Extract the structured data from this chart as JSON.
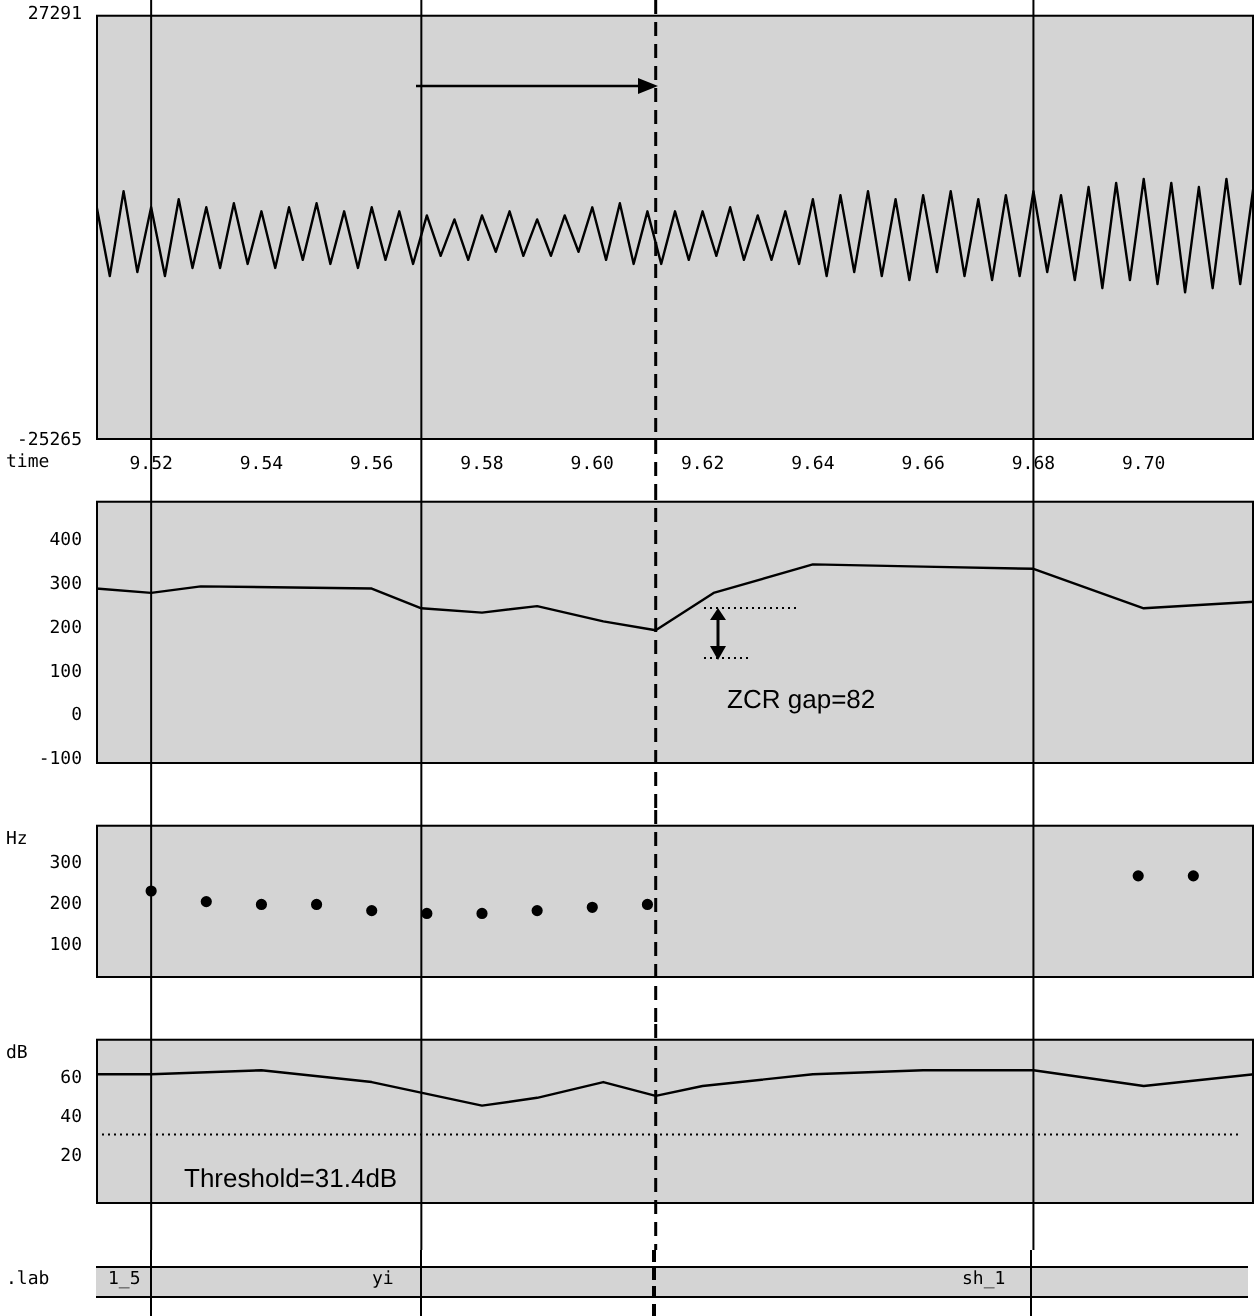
{
  "chart_data": [
    {
      "type": "line",
      "xlabel": "time",
      "xlim": [
        9.51,
        9.72
      ],
      "ylim": [
        -25265,
        27291
      ],
      "yticks": [
        27291,
        -25265
      ],
      "xticks": [
        9.52,
        9.54,
        9.56,
        9.58,
        {
          "value": 9.6,
          "label": "9.60"
        },
        9.62,
        9.64,
        9.66,
        9.68,
        {
          "value": 9.7,
          "label": "9.70"
        }
      ],
      "grid": false,
      "legend": false,
      "marker": "none",
      "x": [
        9.51,
        9.5125,
        9.515,
        9.5175,
        9.52,
        9.5225,
        9.525,
        9.5275,
        9.53,
        9.5325,
        9.535,
        9.5375,
        9.54,
        9.5425,
        9.545,
        9.5475,
        9.55,
        9.5525,
        9.555,
        9.5575,
        9.56,
        9.5625,
        9.565,
        9.5675,
        9.57,
        9.5725,
        9.575,
        9.5775,
        9.58,
        9.5825,
        9.585,
        9.5875,
        9.59,
        9.5925,
        9.595,
        9.5975,
        9.6,
        9.6025,
        9.605,
        9.6075,
        9.61,
        9.6125,
        9.615,
        9.6175,
        9.62,
        9.6225,
        9.625,
        9.6275,
        9.63,
        9.6325,
        9.635,
        9.6375,
        9.64,
        9.6425,
        9.645,
        9.6475,
        9.65,
        9.6525,
        9.655,
        9.6575,
        9.66,
        9.6625,
        9.665,
        9.6675,
        9.67,
        9.6725,
        9.675,
        9.6775,
        9.68,
        9.6825,
        9.685,
        9.6875,
        9.69,
        9.6925,
        9.695,
        9.6975,
        9.7,
        9.7025,
        9.705,
        9.7075,
        9.71,
        9.7125,
        9.715,
        9.7175,
        9.72
      ],
      "series": [
        {
          "color": "#000000",
          "values": [
            4000,
            -5000,
            5500,
            -4500,
            3500,
            -5000,
            4500,
            -4000,
            3500,
            -4000,
            4000,
            -3500,
            3000,
            -4000,
            3500,
            -3000,
            4000,
            -3500,
            3000,
            -4000,
            3500,
            -3000,
            3000,
            -3500,
            2500,
            -2500,
            2000,
            -3000,
            2500,
            -2000,
            3000,
            -2500,
            2000,
            -2500,
            2500,
            -2000,
            3500,
            -3000,
            4000,
            -3500,
            3000,
            -3500,
            3000,
            -3000,
            3000,
            -2500,
            3500,
            -3000,
            2500,
            -3000,
            3000,
            -3500,
            4500,
            -5000,
            5000,
            -4500,
            5500,
            -5000,
            4500,
            -5500,
            5000,
            -4500,
            5500,
            -5000,
            4500,
            -5500,
            5000,
            -5000,
            5500,
            -4500,
            5000,
            -5500,
            6000,
            -6500,
            6500,
            -5500,
            7000,
            -6000,
            6500,
            -7000,
            6000,
            -6500,
            7000,
            -6000,
            6500
          ]
        }
      ],
      "ref_lines": [
        {
          "axis": "x",
          "value": 9.52
        },
        {
          "axis": "x",
          "value": 9.569
        },
        {
          "axis": "x",
          "value": 9.6115,
          "line_style": "dashed"
        },
        {
          "axis": "x",
          "value": 9.68
        }
      ]
    },
    {
      "type": "line",
      "xlim": [
        9.51,
        9.72
      ],
      "ylim": [
        -110,
        490
      ],
      "yticks": [
        400,
        300,
        200,
        100,
        0,
        -100
      ],
      "tick_labels": "y",
      "grid": false,
      "legend": false,
      "marker": "none",
      "x": [
        9.51,
        9.52,
        9.529,
        9.56,
        9.569,
        9.58,
        9.59,
        9.602,
        9.6115,
        9.622,
        9.64,
        9.66,
        9.68,
        9.7,
        9.72
      ],
      "series": [
        {
          "color": "#000000",
          "values": [
            290,
            280,
            295,
            290,
            245,
            235,
            250,
            215,
            195,
            280,
            345,
            340,
            335,
            245,
            260
          ]
        }
      ],
      "annotations": [
        "ZCR gap=82"
      ],
      "ref_lines": [
        {
          "axis": "x",
          "value": 9.52
        },
        {
          "axis": "x",
          "value": 9.569
        },
        {
          "axis": "x",
          "value": 9.6115,
          "line_style": "dashed"
        },
        {
          "axis": "x",
          "value": 9.68
        }
      ]
    },
    {
      "type": "scatter",
      "ylabel": "Hz",
      "xlim": [
        9.51,
        9.72
      ],
      "ylim": [
        20,
        395
      ],
      "yticks": [
        300,
        200,
        100
      ],
      "tick_labels": "y",
      "grid": false,
      "legend": false,
      "marker": "circle",
      "x": [
        9.52,
        9.53,
        9.54,
        9.55,
        9.56,
        9.57,
        9.58,
        9.59,
        9.6,
        9.61,
        9.699,
        9.709
      ],
      "series": [
        {
          "color": "#000000",
          "values": [
            233,
            207,
            200,
            200,
            185,
            178,
            178,
            185,
            193,
            200,
            270,
            270
          ]
        }
      ],
      "ref_lines": [
        {
          "axis": "x",
          "value": 9.52
        },
        {
          "axis": "x",
          "value": 9.569
        },
        {
          "axis": "x",
          "value": 9.6115,
          "line_style": "dashed"
        },
        {
          "axis": "x",
          "value": 9.68
        }
      ]
    },
    {
      "type": "line",
      "ylabel": "dB",
      "xlim": [
        9.51,
        9.72
      ],
      "ylim": [
        -4,
        80
      ],
      "yticks": [
        60,
        40,
        20
      ],
      "tick_labels": "y",
      "grid": false,
      "legend": false,
      "marker": "none",
      "x": [
        9.51,
        9.52,
        9.54,
        9.56,
        9.58,
        9.59,
        9.602,
        9.6115,
        9.62,
        9.64,
        9.66,
        9.68,
        9.7,
        9.72
      ],
      "series": [
        {
          "color": "#000000",
          "values": [
            62,
            62,
            64,
            58,
            46,
            50,
            58,
            51,
            56,
            62,
            64,
            64,
            56,
            62
          ]
        }
      ],
      "ref_lines": [
        {
          "axis": "y",
          "value": 31.4,
          "label": "Threshold=31.4dB",
          "line_style": "dotted"
        },
        {
          "axis": "x",
          "value": 9.52
        },
        {
          "axis": "x",
          "value": 9.569
        },
        {
          "axis": "x",
          "value": 9.6115,
          "line_style": "dashed"
        },
        {
          "axis": "x",
          "value": 9.68
        }
      ]
    },
    {
      "type": "other",
      "ylabel": ".lab",
      "annotations": [
        "1_5",
        "yi",
        "sh_1"
      ]
    }
  ]
}
